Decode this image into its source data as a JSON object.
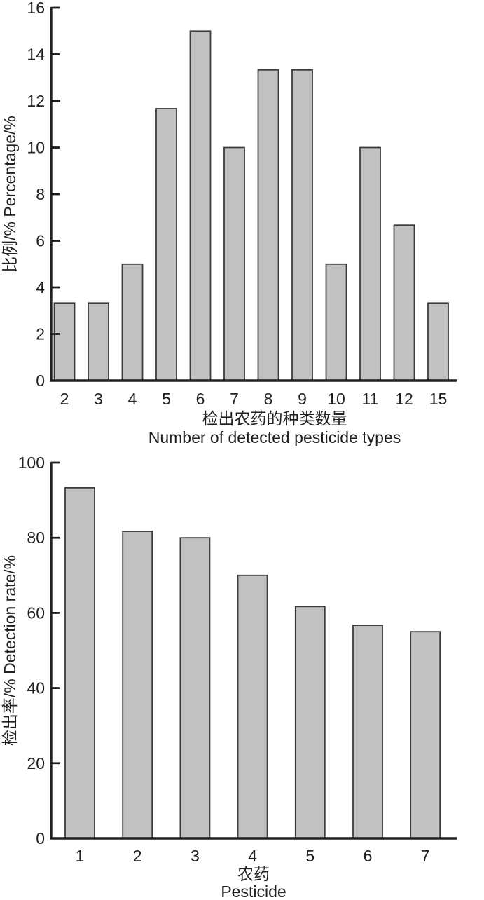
{
  "figure": {
    "background": "#ffffff",
    "bar_fill": "#c1c1c1",
    "bar_stroke": "#3f3b3c",
    "axis_color": "#231f20",
    "text_color": "#231f20"
  },
  "chart_data": [
    {
      "type": "bar",
      "title": "",
      "categories": [
        "2",
        "3",
        "4",
        "5",
        "6",
        "7",
        "8",
        "9",
        "10",
        "11",
        "12",
        "15"
      ],
      "values": [
        3.33,
        3.33,
        5.0,
        11.67,
        15.0,
        10.0,
        13.33,
        13.33,
        5.0,
        10.0,
        6.67,
        3.33
      ],
      "xlabel_zh": "检出农药的种类数量",
      "xlabel_en": "Number of detected pesticide types",
      "ylabel": "比例/% Percentage/%",
      "ylim": [
        0,
        16
      ],
      "y_step": 2,
      "y_tick_labels": [
        "0",
        "2",
        "4",
        "6",
        "8",
        "10",
        "12",
        "14",
        "16"
      ],
      "grid": false,
      "legend": "none"
    },
    {
      "type": "bar",
      "title": "",
      "categories": [
        "1",
        "2",
        "3",
        "4",
        "5",
        "6",
        "7"
      ],
      "values": [
        93.3,
        81.7,
        80.0,
        70.0,
        61.7,
        56.7,
        55.0
      ],
      "xlabel_zh": "农药",
      "xlabel_en": "Pesticide",
      "ylabel": "检出率/% Detection rate/%",
      "ylim": [
        0,
        100
      ],
      "y_step": 20,
      "y_tick_labels": [
        "0",
        "20",
        "40",
        "60",
        "80",
        "100"
      ],
      "grid": false,
      "legend": "none"
    }
  ]
}
